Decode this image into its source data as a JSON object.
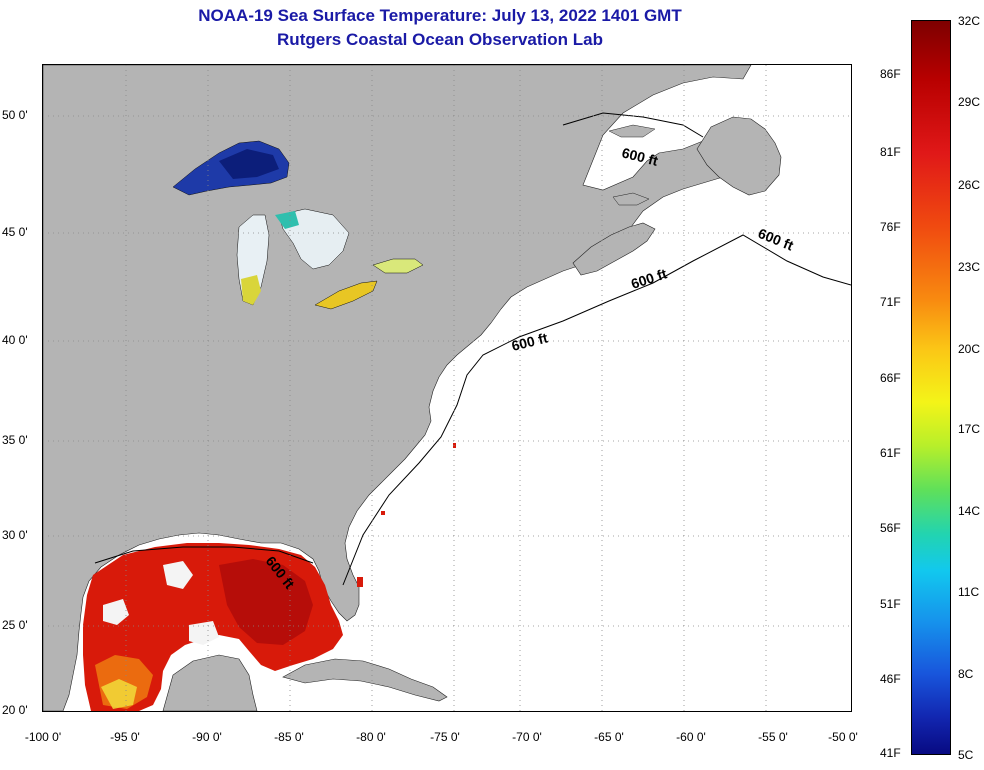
{
  "title": {
    "line1": "NOAA-19 Sea Surface Temperature:  July 13, 2022 1401 GMT",
    "line2": "Rutgers Coastal Ocean Observation Lab"
  },
  "axes": {
    "y_labels": [
      "50 0'",
      "45 0'",
      "40 0'",
      "35 0'",
      "30 0'",
      "25 0'",
      "20 0'"
    ],
    "x_labels": [
      "-100 0'",
      "-95 0'",
      "-90 0'",
      "-85 0'",
      "-80 0'",
      "-75 0'",
      "-70 0'",
      "-65 0'",
      "-60 0'",
      "-55 0'",
      "-50 0'"
    ]
  },
  "isobath_labels": [
    "600 ft",
    "600 ft",
    "600 ft",
    "600 ft",
    "600 ft"
  ],
  "colorbar": {
    "fahrenheit": [
      "86F",
      "81F",
      "76F",
      "71F",
      "66F",
      "61F",
      "56F",
      "51F",
      "46F",
      "41F"
    ],
    "celsius": [
      "32C",
      "29C",
      "26C",
      "23C",
      "20C",
      "17C",
      "14C",
      "11C",
      "8C",
      "5C"
    ]
  },
  "colors": {
    "land": "#b4b4b4",
    "title": "#1a1aa6",
    "warm": "#d81a0a",
    "cold": "#0a2a9a"
  }
}
